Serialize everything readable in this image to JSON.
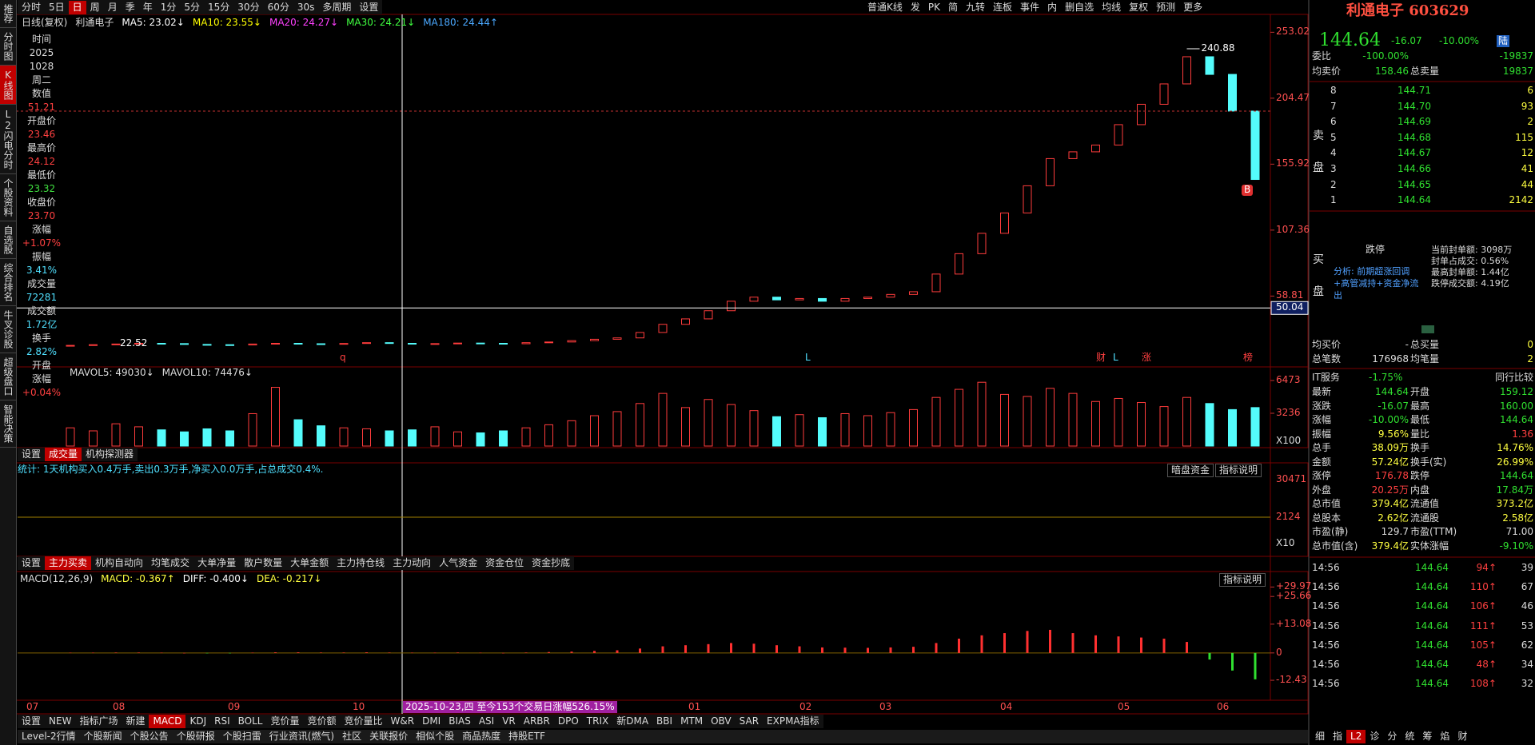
{
  "toolbar": {
    "periods": [
      "分时",
      "5日",
      "日",
      "周",
      "月",
      "季",
      "年",
      "1分",
      "5分",
      "15分",
      "30分",
      "60分",
      "30s",
      "多周期",
      "设置"
    ],
    "active_period": 2,
    "tools": [
      "普通K线",
      "发",
      "PK",
      "简",
      "九转",
      "连板",
      "事件",
      "内",
      "删自选",
      "均线",
      "复权",
      "预测",
      "更多"
    ]
  },
  "side_tabs": [
    "推荐",
    "分时图",
    "K线图",
    "L2闪电分时",
    "个股资料",
    "自选股",
    "综合排名",
    "牛叉诊股",
    "超级盘口",
    "智能决策"
  ],
  "active_side": 2,
  "legend": {
    "caption": "日线(复权)",
    "name": "利通电子",
    "ma": [
      {
        "label": "MA5: 23.02↓",
        "color": "#ffffff"
      },
      {
        "label": "MA10: 23.55↓",
        "color": "#ffff00"
      },
      {
        "label": "MA20: 24.27↓",
        "color": "#ff40ff"
      },
      {
        "label": "MA30: 24.21↓",
        "color": "#40ff40"
      },
      {
        "label": "MA180: 24.44↑",
        "color": "#4aa8ff"
      }
    ]
  },
  "info_panel": [
    {
      "text": "时间",
      "color": "#dddddd"
    },
    {
      "text": "2025",
      "color": "#dddddd"
    },
    {
      "text": "1028",
      "color": "#dddddd"
    },
    {
      "text": "周二",
      "color": "#dddddd"
    },
    {
      "text": "数值",
      "color": "#dddddd"
    },
    {
      "text": "51.21",
      "color": "#ff4040"
    },
    {
      "text": "开盘价",
      "color": "#dddddd"
    },
    {
      "text": "23.46",
      "color": "#ff4040"
    },
    {
      "text": "最高价",
      "color": "#dddddd"
    },
    {
      "text": "24.12",
      "color": "#ff4040"
    },
    {
      "text": "最低价",
      "color": "#dddddd"
    },
    {
      "text": "23.32",
      "color": "#40e040"
    },
    {
      "text": "收盘价",
      "color": "#dddddd"
    },
    {
      "text": "23.70",
      "color": "#ff4040"
    },
    {
      "text": "涨幅",
      "color": "#dddddd"
    },
    {
      "text": "+1.07%",
      "color": "#ff4040"
    },
    {
      "text": "振幅",
      "color": "#dddddd"
    },
    {
      "text": "3.41%",
      "color": "#50e0ff"
    },
    {
      "text": "成交量",
      "color": "#dddddd"
    },
    {
      "text": "72281",
      "color": "#50e0ff"
    },
    {
      "text": "成交额",
      "color": "#dddddd"
    },
    {
      "text": "1.72亿",
      "color": "#50e0ff"
    },
    {
      "text": "换手",
      "color": "#dddddd"
    },
    {
      "text": "2.82%",
      "color": "#50e0ff"
    },
    {
      "text": "开盘",
      "color": "#dddddd"
    },
    {
      "text": "涨幅",
      "color": "#dddddd"
    },
    {
      "text": "+0.04%",
      "color": "#ff4040"
    }
  ],
  "chart_data": [
    {
      "type": "candlestick",
      "values": [
        22.5,
        23,
        23.5,
        24,
        23.8,
        23.2,
        23,
        22.8,
        23.5,
        24,
        23.7,
        23.5,
        23.9,
        24.5,
        24,
        23.5,
        23.8,
        24.2,
        24,
        23.7,
        24.5,
        25,
        26,
        27,
        28,
        32,
        38,
        42,
        48,
        55,
        58,
        56,
        57,
        55,
        57,
        58,
        60,
        62,
        75,
        90,
        105,
        120,
        140,
        160,
        165,
        170,
        185,
        200,
        215,
        235,
        222,
        195,
        144.64
      ],
      "ylim": [
        9,
        265
      ],
      "yticks": [
        253.02,
        204.47,
        155.92,
        107.36,
        58.81
      ],
      "high_label": 240.88,
      "low_label": 22.52,
      "crosshair_value": 50.04,
      "up_color": "#ff3c3c",
      "down_color": "#54fcfc",
      "flags": [
        "q",
        "L",
        "财",
        "L",
        "涨",
        "榜"
      ],
      "buy_marker": "B"
    },
    {
      "type": "bar",
      "legend": [
        "MAVOL5: 49030↓",
        "MAVOL10: 74476↓"
      ],
      "values": [
        1800,
        1500,
        2200,
        1900,
        1600,
        1400,
        1700,
        1500,
        3200,
        5800,
        2600,
        2000,
        1800,
        1700,
        1500,
        1600,
        1900,
        1400,
        1300,
        1500,
        1800,
        2100,
        2500,
        3000,
        3400,
        4200,
        5200,
        3800,
        4600,
        4100,
        3500,
        2900,
        3100,
        2800,
        3200,
        3000,
        3300,
        3600,
        4800,
        5600,
        6300,
        5100,
        4900,
        5700,
        5200,
        4400,
        4700,
        4300,
        3900,
        4800,
        4200,
        3600,
        3800
      ],
      "ylim": [
        0,
        7500
      ],
      "yticks": [
        6473,
        3236
      ],
      "unit": "X100"
    },
    {
      "type": "macd",
      "legend": [
        {
          "label": "MACD(12,26,9)",
          "color": "#dddddd"
        },
        {
          "label": "MACD: -0.367↑",
          "color": "#ffff40"
        },
        {
          "label": "DIFF: -0.400↓",
          "color": "#ffffff"
        },
        {
          "label": "DEA: -0.217↓",
          "color": "#ffff40"
        }
      ],
      "button": "指标说明",
      "values": [
        0.1,
        0.1,
        0.2,
        0.2,
        0.1,
        0,
        -0.1,
        -0.1,
        0.1,
        0.3,
        0.3,
        0.2,
        0.2,
        0.3,
        0.2,
        0.1,
        0.1,
        0.2,
        0.1,
        0,
        0.2,
        0.4,
        0.6,
        0.9,
        1.2,
        2,
        3,
        3.5,
        4,
        4.5,
        4.2,
        3.5,
        3,
        2.5,
        2.4,
        2.3,
        2.5,
        2.8,
        4.5,
        6.5,
        8,
        9,
        10,
        10.5,
        9,
        8,
        7.5,
        7,
        6.5,
        5,
        -3,
        -8,
        -12
      ],
      "ylim": [
        -21.5,
        37
      ],
      "yticks": [
        {
          "value": 29.97,
          "label": "+29.97"
        },
        {
          "value": 25.66,
          "label": "+25.66"
        },
        {
          "value": 13.08,
          "label": "+13.08"
        },
        0,
        {
          "value": -12.43,
          "label": "-12.43"
        }
      ],
      "up_color": "#ff3030",
      "down_color": "#30e030"
    }
  ],
  "fund_panel": {
    "stat": "统计: 1天机构买入0.4万手,卖出0.3万手,净买入0.0万手,占总成交0.4%.",
    "buttons": [
      "暗盘资金",
      "指标说明"
    ],
    "ticks": [
      "30471",
      "2124",
      "X10"
    ]
  },
  "tabs": {
    "volume": [
      "设置",
      "成交量",
      "机构探测器"
    ],
    "volume_active": 1,
    "fund": [
      "设置",
      "主力买卖",
      "机构自动向",
      "均笔成交",
      "大单净量",
      "散户数量",
      "大单金额",
      "主力持仓线",
      "主力动向",
      "人气资金",
      "资金仓位",
      "资金抄底"
    ],
    "fund_active": 1,
    "indicators": [
      "设置",
      "NEW",
      "指标广场",
      "新建",
      "MACD",
      "KDJ",
      "RSI",
      "BOLL",
      "竞价量",
      "竞价额",
      "竞价量比",
      "W&R",
      "DMI",
      "BIAS",
      "ASI",
      "VR",
      "ARBR",
      "DPO",
      "TRIX",
      "新DMA",
      "BBI",
      "MTM",
      "OBV",
      "SAR",
      "EXPMA指标"
    ],
    "indicators_active": 4,
    "footer": [
      "Level-2行情",
      "个股新闻",
      "个股公告",
      "个股研报",
      "个股扫雷",
      "行业资讯(燃气)",
      "社区",
      "关联报价",
      "相似个股",
      "商品热度",
      "持股ETF"
    ],
    "right_footer": [
      "细",
      "指",
      "L2",
      "诊",
      "分",
      "统",
      "筹",
      "焰",
      "财"
    ],
    "right_active": 2
  },
  "date_axis": {
    "labels": [
      "07",
      "08",
      "09",
      "10",
      "01",
      "02",
      "03",
      "04",
      "05",
      "06"
    ],
    "note": "2025-10-23,四 至今153个交易日涨幅526.15%"
  },
  "right_panel": {
    "title": "利通电子 603629",
    "price": "144.64",
    "change": "-16.07",
    "pct": "-10.00%",
    "badge": "陆",
    "top_rows": [
      [
        "委比",
        "-100.00%",
        "",
        "-19837"
      ],
      [
        "均卖价",
        "158.46",
        "总卖量",
        "19837"
      ]
    ],
    "sell_label": "卖盘",
    "sell": [
      [
        "8",
        "144.71",
        "6"
      ],
      [
        "7",
        "144.70",
        "93"
      ],
      [
        "6",
        "144.69",
        "2"
      ],
      [
        "5",
        "144.68",
        "115"
      ],
      [
        "4",
        "144.67",
        "12"
      ],
      [
        "3",
        "144.66",
        "41"
      ],
      [
        "2",
        "144.65",
        "44"
      ],
      [
        "1",
        "144.64",
        "2142"
      ]
    ],
    "buy_label": "买盘",
    "buy_status": "跌停",
    "buy_stats": [
      "当前封单额: 3098万",
      "封单占成交: 0.56%",
      "最高封单额: 1.44亿",
      "跌停成交额: 4.19亿"
    ],
    "analysis": "分析: 前期超涨回调+高管减持+资金净流出",
    "mid_rows": [
      [
        "均买价",
        "-",
        "总买量",
        "0"
      ],
      [
        "总笔数",
        "176968",
        "均笔量",
        "2"
      ]
    ],
    "industry": [
      "IT服务",
      "-1.75%",
      "同行比较"
    ],
    "stats": [
      [
        "最新",
        "144.64",
        "开盘",
        "159.12"
      ],
      [
        "涨跌",
        "-16.07",
        "最高",
        "160.00"
      ],
      [
        "涨幅",
        "-10.00%",
        "最低",
        "144.64"
      ],
      [
        "振幅",
        "9.56%",
        "量比",
        "1.36"
      ],
      [
        "总手",
        "38.09万",
        "换手",
        "14.76%"
      ],
      [
        "金额",
        "57.24亿",
        "换手(实)",
        "26.99%"
      ],
      [
        "涨停",
        "176.78",
        "跌停",
        "144.64"
      ],
      [
        "外盘",
        "20.25万",
        "内盘",
        "17.84万"
      ],
      [
        "总市值",
        "379.4亿",
        "流通值",
        "373.2亿"
      ],
      [
        "总股本",
        "2.62亿",
        "流通股",
        "2.58亿"
      ],
      [
        "市盈(静)",
        "129.7",
        "市盈(TTM)",
        "71.00"
      ],
      [
        "总市值(含)",
        "379.4亿",
        "实体涨幅",
        "-9.10%"
      ]
    ],
    "stat_colors": [
      [
        "#30e030",
        "#30e030"
      ],
      [
        "#30e030",
        "#30e030"
      ],
      [
        "#30e030",
        "#30e030"
      ],
      [
        "#ffff40",
        "#ff4040"
      ],
      [
        "#ffff40",
        "#ffff40"
      ],
      [
        "#ffff40",
        "#ffff40"
      ],
      [
        "#ff4040",
        "#30e030"
      ],
      [
        "#ff4040",
        "#30e030"
      ],
      [
        "#ffff40",
        "#ffff40"
      ],
      [
        "#ffff40",
        "#ffff40"
      ],
      [
        "#dddddd",
        "#dddddd"
      ],
      [
        "#ffff40",
        "#30e030"
      ]
    ],
    "trades": [
      [
        "14:56",
        "144.64",
        "94↑",
        "39"
      ],
      [
        "14:56",
        "144.64",
        "110↑",
        "67"
      ],
      [
        "14:56",
        "144.64",
        "106↑",
        "46"
      ],
      [
        "14:56",
        "144.64",
        "111↑",
        "53"
      ],
      [
        "14:56",
        "144.64",
        "105↑",
        "62"
      ],
      [
        "14:56",
        "144.64",
        "48↑",
        "34"
      ],
      [
        "14:56",
        "144.64",
        "108↑",
        "32"
      ]
    ]
  }
}
